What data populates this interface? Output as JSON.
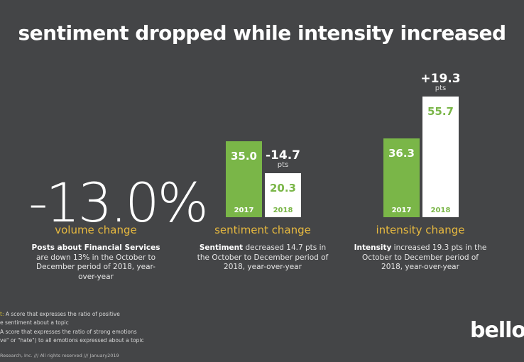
{
  "title": "sentiment dropped while intensity increased",
  "volume": {
    "big_value": "-13.0%",
    "label": "volume change",
    "desc_bold": "Posts about Financial Services",
    "desc_rest": "are down 13% in the October to December period of 2018, year-over-year"
  },
  "sentiment": {
    "label": "sentiment change",
    "desc_bold": "Sentiment",
    "desc_rest": " decreased 14.7 pts in the October to December period of 2018, year-over-year",
    "delta": "-14.7",
    "delta_unit": "pts"
  },
  "intensity": {
    "label": "intensity change",
    "desc_bold": "Intensity",
    "desc_rest": " increased 19.3 pts in the October to December period of 2018, year-over-year",
    "delta": "+19.3",
    "delta_unit": "pts"
  },
  "chart_data": [
    {
      "type": "bar",
      "title": "sentiment change",
      "categories": [
        "2017",
        "2018"
      ],
      "values": [
        35.0,
        20.3
      ],
      "value_labels": [
        "35.0",
        "20.3"
      ],
      "annotation": "-14.7 pts",
      "colors": [
        "#7ab648",
        "#ffffff"
      ]
    },
    {
      "type": "bar",
      "title": "intensity change",
      "categories": [
        "2017",
        "2018"
      ],
      "values": [
        36.3,
        55.7
      ],
      "value_labels": [
        "36.3",
        "55.7"
      ],
      "annotation": "+19.3 pts",
      "colors": [
        "#7ab648",
        "#ffffff"
      ]
    }
  ],
  "footnotes": {
    "line1_key": "t:",
    "line1": " A score that expresses the ratio of positive",
    "line2": "e sentiment about a topic",
    "line3": "A score that expresses the ratio of strong emotions",
    "line4": "ve\" or \"hate\") to all emotions expressed about a topic",
    "copyright": "Research, Inc. /// All rights reserved /// January2019"
  },
  "logo": "bello"
}
